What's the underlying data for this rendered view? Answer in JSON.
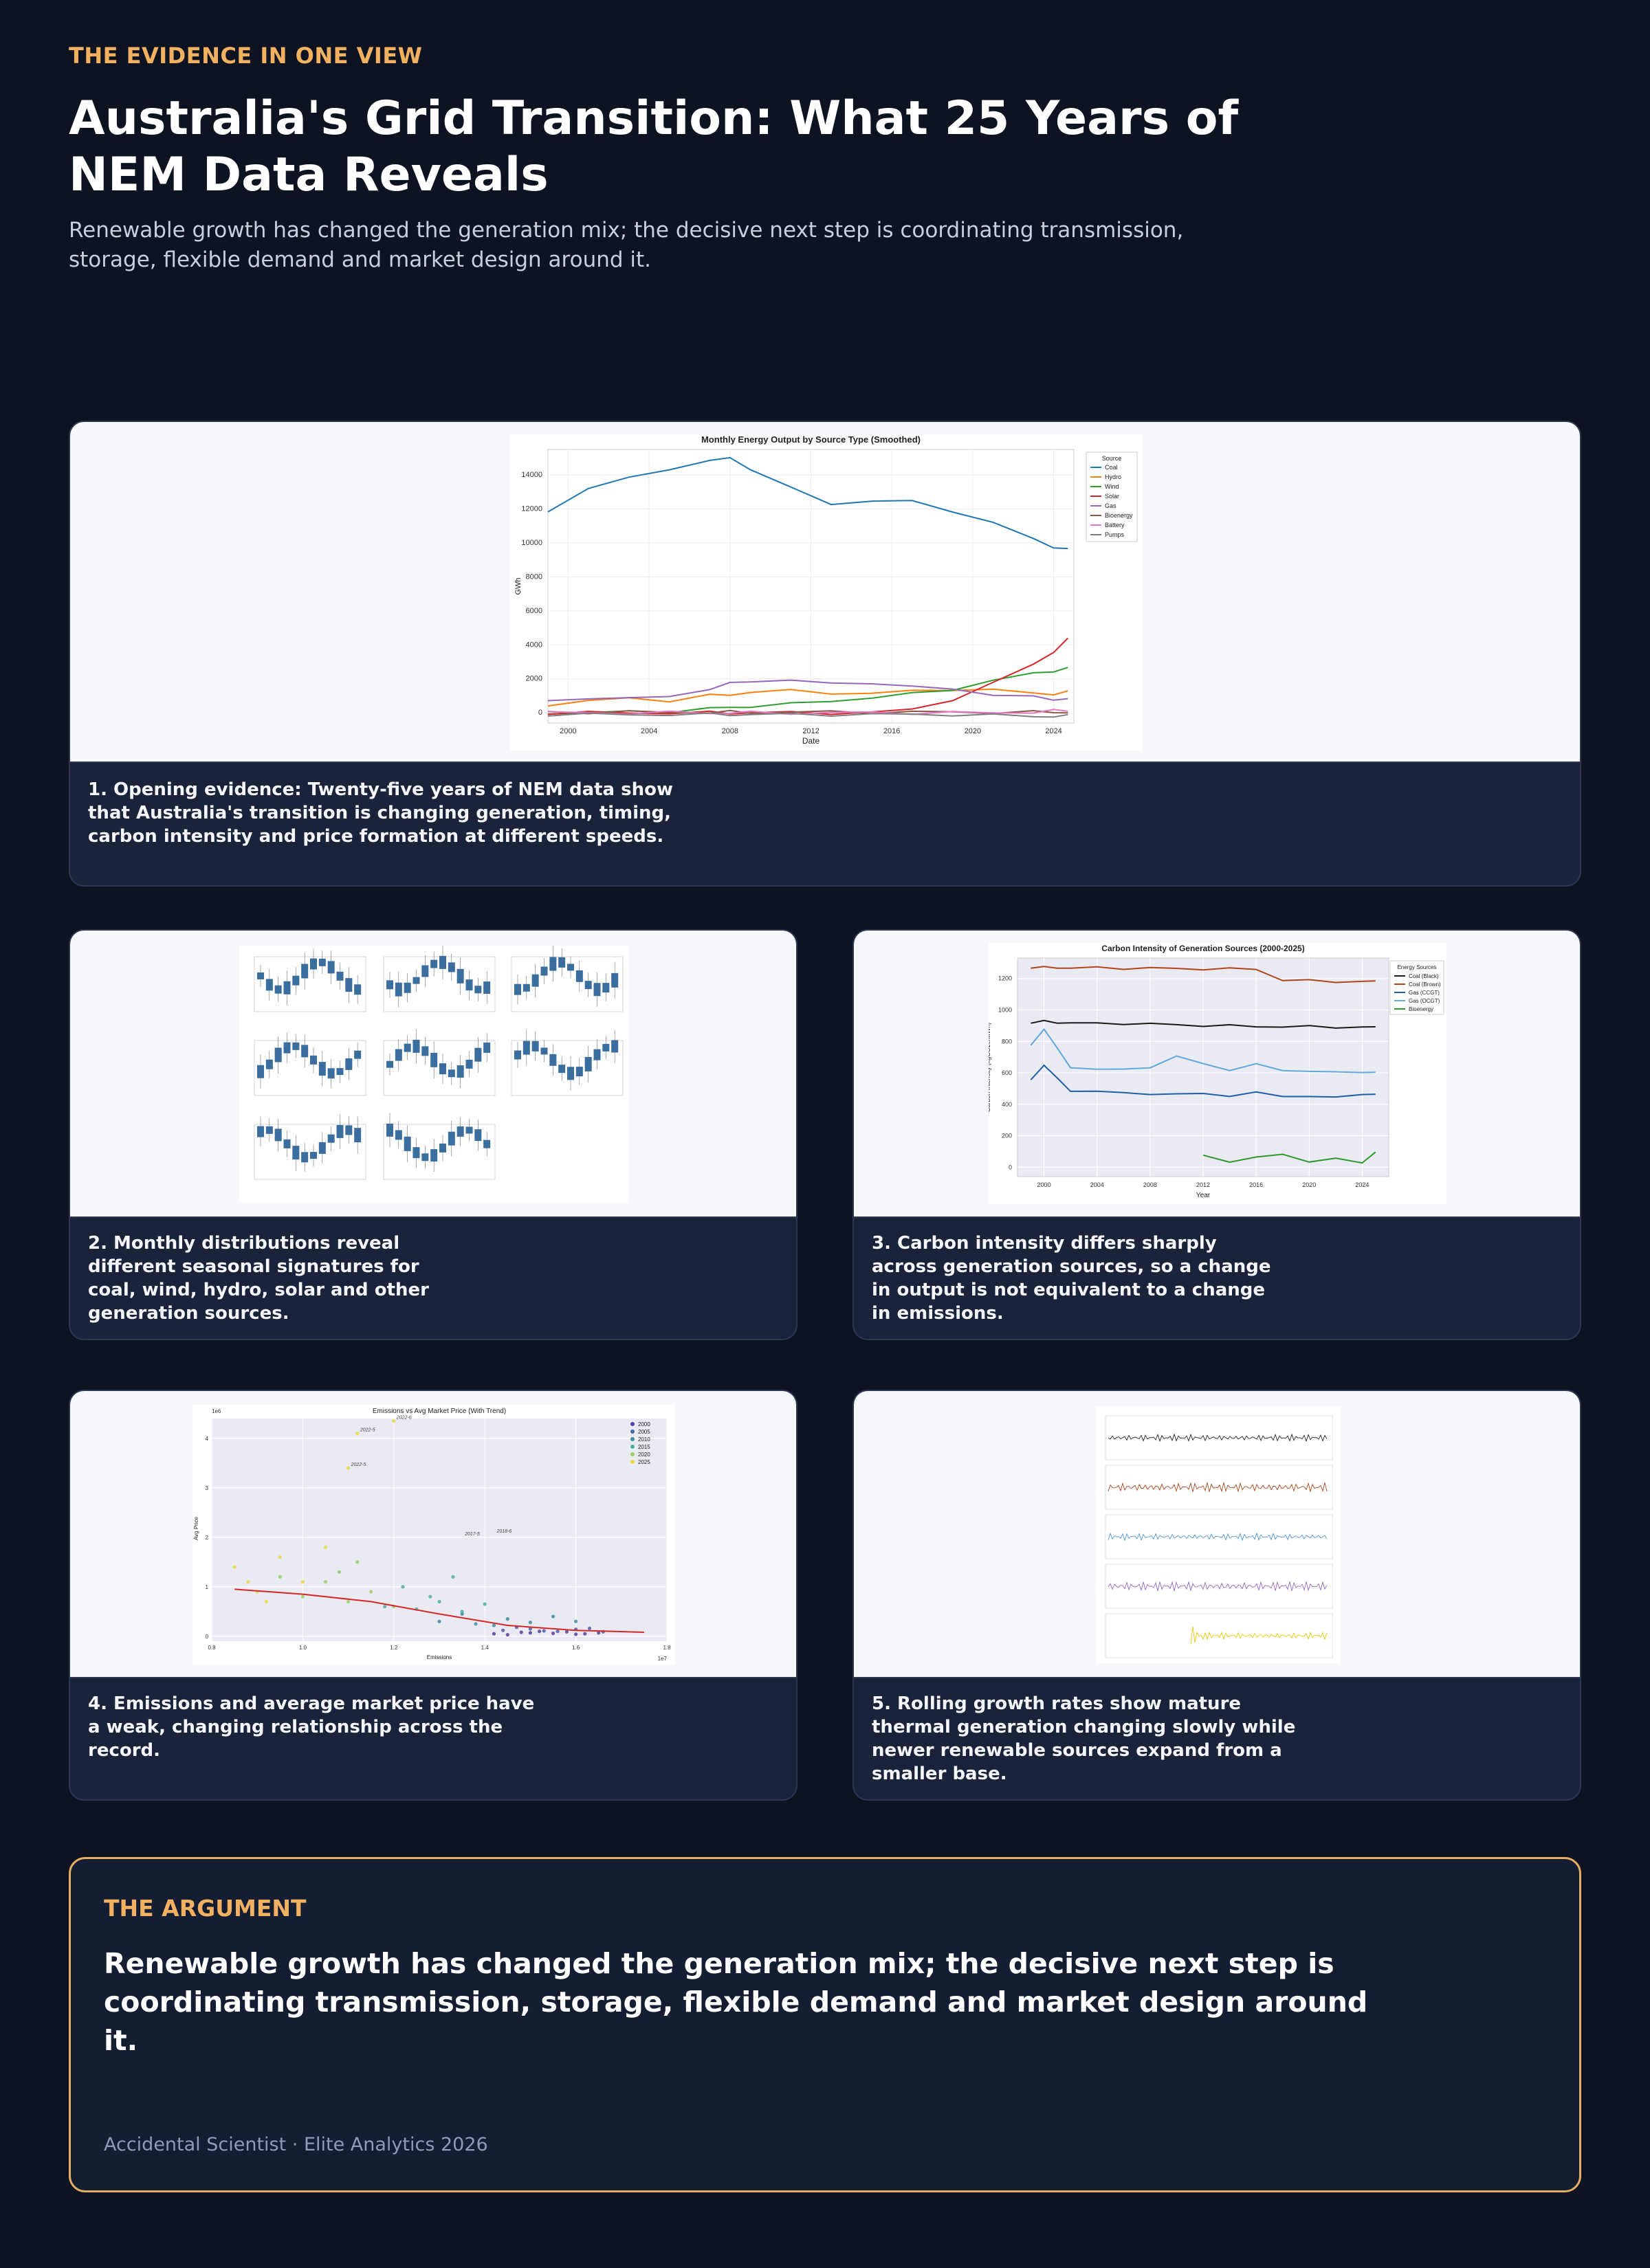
{
  "header": {
    "eyebrow": "THE EVIDENCE IN ONE VIEW",
    "title": "Australia's Grid Transition: What 25 Years of NEM Data Reveals",
    "subtitle": "Renewable growth has changed the generation mix; the decisive next step is coordinating transmission, storage, flexible demand and market design around it."
  },
  "cards": [
    {
      "caption": "1. Opening evidence: Twenty-five years of NEM data show that Australia's transition is changing generation, timing, carbon intensity and price formation at different speeds."
    },
    {
      "caption": "2. Monthly distributions reveal different seasonal signatures for coal, wind, hydro, solar and other generation sources."
    },
    {
      "caption": "3. Carbon intensity differs sharply across generation sources, so a change in output is not equivalent to a change in emissions."
    },
    {
      "caption": "4. Emissions and average market price have a weak, changing relationship across the record."
    },
    {
      "caption": "5. Rolling growth rates show mature thermal generation changing slowly while newer renewable sources expand from a smaller base."
    }
  ],
  "argument": {
    "eyebrow": "THE ARGUMENT",
    "text": "Renewable growth has changed the generation mix; the decisive next step is coordinating transmission, storage, flexible demand and market design around it.",
    "footer": "Accidental Scientist · Elite Analytics 2026"
  },
  "chart_data": [
    {
      "type": "line",
      "title": "Monthly Energy Output by Source Type (Smoothed)",
      "xlabel": "Date",
      "ylabel": "GWh",
      "xlim": [
        1999,
        2025
      ],
      "ylim": [
        -600,
        15500
      ],
      "xticks": [
        "2000",
        "2004",
        "2008",
        "2012",
        "2016",
        "2020",
        "2024"
      ],
      "yticks": [
        "0",
        "2000",
        "4000",
        "6000",
        "8000",
        "10000",
        "12000",
        "14000"
      ],
      "legend_title": "Source",
      "legend_position": "top-right",
      "grid": true,
      "x": [
        1999,
        2001,
        2003,
        2005,
        2007,
        2008,
        2009,
        2011,
        2013,
        2015,
        2017,
        2019,
        2021,
        2023,
        2024,
        2024.7
      ],
      "series": [
        {
          "name": "Coal",
          "color": "#1f77b4",
          "values": [
            11900,
            13200,
            13800,
            14400,
            14800,
            15000,
            14400,
            13200,
            12300,
            12500,
            12400,
            11900,
            11200,
            10200,
            9800,
            9600
          ]
        },
        {
          "name": "Hydro",
          "color": "#ff7f0e",
          "values": [
            500,
            650,
            900,
            700,
            1000,
            1100,
            1200,
            1300,
            1200,
            1100,
            1300,
            1400,
            1300,
            1200,
            1100,
            1200
          ]
        },
        {
          "name": "Wind",
          "color": "#2ca02c",
          "values": [
            0,
            0,
            50,
            100,
            250,
            300,
            400,
            500,
            700,
            900,
            1100,
            1400,
            1900,
            2300,
            2500,
            2600
          ]
        },
        {
          "name": "Solar",
          "color": "#d62728",
          "values": [
            0,
            0,
            0,
            0,
            0,
            0,
            0,
            0,
            0,
            0,
            200,
            800,
            1700,
            2900,
            3600,
            4300
          ]
        },
        {
          "name": "Gas",
          "color": "#9467bd",
          "values": [
            700,
            900,
            800,
            1000,
            1400,
            1700,
            1900,
            1900,
            1700,
            1800,
            1500,
            1400,
            1100,
            900,
            800,
            850
          ]
        },
        {
          "name": "Bioenergy",
          "color": "#8c564b",
          "values": [
            40,
            40,
            40,
            40,
            40,
            40,
            40,
            40,
            40,
            40,
            40,
            40,
            40,
            40,
            40,
            40
          ]
        },
        {
          "name": "Battery",
          "color": "#e377c2",
          "values": [
            0,
            0,
            0,
            0,
            0,
            0,
            0,
            0,
            0,
            0,
            0,
            0,
            0,
            50,
            100,
            150
          ]
        },
        {
          "name": "Pumps",
          "color": "#7f7f7f",
          "values": [
            -100,
            -100,
            -100,
            -100,
            -100,
            -100,
            -100,
            -100,
            -100,
            -100,
            -100,
            -100,
            -150,
            -200,
            -200,
            -200
          ]
        }
      ]
    },
    {
      "type": "line",
      "title": "Carbon Intensity of Generation Sources (2000-2025)",
      "xlabel": "Year",
      "ylabel": "Carbon Intensity (kgCO2e/MWh)",
      "xlim": [
        1998,
        2026
      ],
      "ylim": [
        -60,
        1330
      ],
      "xticks": [
        "2000",
        "2004",
        "2008",
        "2012",
        "2016",
        "2020",
        "2024"
      ],
      "yticks": [
        "0",
        "200",
        "400",
        "600",
        "800",
        "1000",
        "1200"
      ],
      "legend_title": "Energy Sources",
      "legend_position": "top-right",
      "grid": true,
      "x": [
        1999,
        2000,
        2001,
        2002,
        2004,
        2006,
        2008,
        2010,
        2012,
        2014,
        2016,
        2018,
        2020,
        2022,
        2024,
        2025
      ],
      "series": [
        {
          "name": "Coal (Black)",
          "color": "#1a1a1a",
          "values": [
            920,
            925,
            922,
            918,
            912,
            915,
            910,
            905,
            902,
            898,
            896,
            894,
            893,
            892,
            890,
            888
          ]
        },
        {
          "name": "Coal (Brown)",
          "color": "#b2451b",
          "values": [
            1270,
            1268,
            1272,
            1265,
            1268,
            1266,
            1265,
            1263,
            1262,
            1260,
            1261,
            1190,
            1185,
            1182,
            1180,
            1180
          ]
        },
        {
          "name": "Gas (CCGT)",
          "color": "#1f5fa8",
          "values": [
            560,
            650,
            560,
            490,
            480,
            470,
            470,
            460,
            470,
            455,
            470,
            455,
            450,
            440,
            470,
            460
          ]
        },
        {
          "name": "Gas (OCGT)",
          "color": "#5fa9db",
          "values": [
            780,
            880,
            750,
            640,
            620,
            620,
            640,
            700,
            660,
            620,
            650,
            620,
            610,
            600,
            610,
            600
          ]
        },
        {
          "name": "Bioenergy",
          "color": "#2e9a2e",
          "values": [
            null,
            null,
            null,
            null,
            null,
            null,
            null,
            null,
            70,
            40,
            60,
            80,
            40,
            50,
            30,
            100
          ]
        }
      ]
    },
    {
      "type": "scatter",
      "title": "Emissions vs Avg Market Price (With Trend)",
      "xlabel": "Emissions",
      "ylabel": "Avg Price",
      "x_scale_note": "1e7",
      "y_scale_note": "1e6",
      "xlim": [
        0.8,
        1.8
      ],
      "ylim": [
        -0.1,
        4.4
      ],
      "xticks": [
        "0.8",
        "1.0",
        "1.2",
        "1.4",
        "1.6",
        "1.8"
      ],
      "yticks": [
        "0",
        "1",
        "2",
        "3",
        "4"
      ],
      "legend_entries": [
        "2000",
        "2005",
        "2010",
        "2015",
        "2020",
        "2025"
      ],
      "legend_position": "top-right",
      "annotations": [
        "2022-5",
        "2022-6",
        "2022-5",
        "2017-5",
        "2018-6"
      ],
      "trend": {
        "color": "#d62728",
        "x": [
          0.85,
          1.0,
          1.15,
          1.3,
          1.45,
          1.6,
          1.75
        ],
        "y": [
          0.95,
          0.85,
          0.7,
          0.45,
          0.22,
          0.12,
          0.08
        ]
      },
      "series": [
        {
          "name": "2000",
          "color": "#5a3f99",
          "points": [
            [
              1.42,
              0.05
            ],
            [
              1.48,
              0.08
            ],
            [
              1.55,
              0.06
            ],
            [
              1.6,
              0.04
            ],
            [
              1.65,
              0.07
            ],
            [
              1.52,
              0.1
            ],
            [
              1.45,
              0.03
            ],
            [
              1.58,
              0.09
            ],
            [
              1.62,
              0.05
            ],
            [
              1.5,
              0.07
            ]
          ]
        },
        {
          "name": "2005",
          "color": "#4b62a8",
          "points": [
            [
              1.44,
              0.12
            ],
            [
              1.5,
              0.15
            ],
            [
              1.56,
              0.1
            ],
            [
              1.6,
              0.14
            ],
            [
              1.66,
              0.09
            ],
            [
              1.47,
              0.18
            ],
            [
              1.53,
              0.11
            ],
            [
              1.63,
              0.16
            ]
          ]
        },
        {
          "name": "2010",
          "color": "#3f8ca3",
          "points": [
            [
              1.3,
              0.3
            ],
            [
              1.38,
              0.25
            ],
            [
              1.45,
              0.35
            ],
            [
              1.5,
              0.28
            ],
            [
              1.55,
              0.4
            ],
            [
              1.42,
              0.22
            ],
            [
              1.35,
              0.45
            ],
            [
              1.6,
              0.3
            ]
          ]
        },
        {
          "name": "2015",
          "color": "#4fb09a",
          "points": [
            [
              1.18,
              0.6
            ],
            [
              1.25,
              0.55
            ],
            [
              1.3,
              0.7
            ],
            [
              1.35,
              0.5
            ],
            [
              1.4,
              0.65
            ],
            [
              1.28,
              0.8
            ],
            [
              1.33,
              1.2
            ],
            [
              1.22,
              1.0
            ]
          ]
        },
        {
          "name": "2020",
          "color": "#9bcf6b",
          "points": [
            [
              1.0,
              0.8
            ],
            [
              1.05,
              1.1
            ],
            [
              1.1,
              0.7
            ],
            [
              1.15,
              0.9
            ],
            [
              1.08,
              1.3
            ],
            [
              1.2,
              0.6
            ],
            [
              0.95,
              1.2
            ],
            [
              1.12,
              1.5
            ]
          ]
        },
        {
          "name": "2025",
          "color": "#e6dc4a",
          "points": [
            [
              0.85,
              1.4
            ],
            [
              0.9,
              0.9
            ],
            [
              0.95,
              1.6
            ],
            [
              1.0,
              1.1
            ],
            [
              0.92,
              0.7
            ],
            [
              1.05,
              1.8
            ],
            [
              0.88,
              1.1
            ],
            [
              1.1,
              3.4
            ],
            [
              1.12,
              4.1
            ],
            [
              1.2,
              4.35
            ]
          ]
        }
      ]
    }
  ]
}
